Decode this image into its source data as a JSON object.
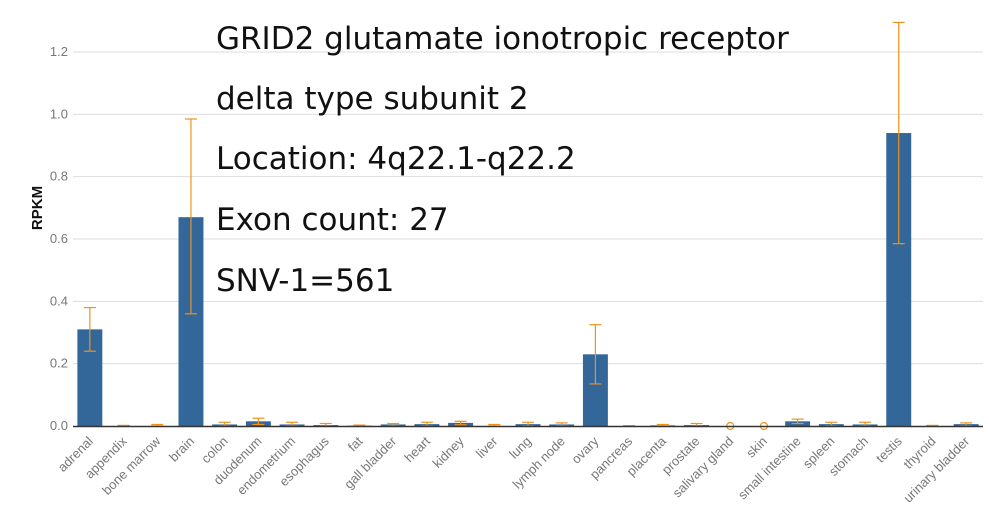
{
  "annotations": {
    "line1": "GRID2 glutamate ionotropic receptor",
    "line2": "delta type subunit 2",
    "line3": "Location: 4q22.1-q22.2",
    "line4": "Exon count: 27",
    "line5": "SNV-1=561"
  },
  "chart_data": {
    "type": "bar",
    "ylabel": "RPKM",
    "ylim": [
      0,
      1.3
    ],
    "yticks": [
      "0.0",
      "0.2",
      "0.4",
      "0.6",
      "0.8",
      "1.0",
      "1.2"
    ],
    "grid": true,
    "categories": [
      "adrenal",
      "appendix",
      "bone marrow",
      "brain",
      "colon",
      "duodenum",
      "endometrium",
      "esophagus",
      "fat",
      "gall bladder",
      "heart",
      "kidney",
      "liver",
      "lung",
      "lymph node",
      "ovary",
      "pancreas",
      "placenta",
      "prostate",
      "salivary gland",
      "skin",
      "small intestine",
      "spleen",
      "stomach",
      "testis",
      "thyroid",
      "urinary bladder"
    ],
    "values": [
      0.31,
      0.0,
      0.0,
      0.67,
      0.005,
      0.015,
      0.005,
      0.003,
      0.001,
      0.005,
      0.006,
      0.01,
      0.0,
      0.006,
      0.005,
      0.23,
      0.0,
      0.002,
      0.003,
      0.0,
      0.0,
      0.015,
      0.006,
      0.005,
      0.94,
      0.0,
      0.006
    ],
    "error_low": [
      0.24,
      0.0,
      0.0,
      0.36,
      0.0,
      0.005,
      0.0,
      0.0,
      0.0,
      0.0,
      0.0,
      0.004,
      0.0,
      0.0,
      0.0,
      0.135,
      0.0,
      0.0,
      0.0,
      0.0,
      0.0,
      0.008,
      0.0,
      0.0,
      0.585,
      0.0,
      0.0
    ],
    "error_high": [
      0.38,
      0.002,
      0.005,
      0.985,
      0.012,
      0.025,
      0.012,
      0.008,
      0.003,
      0.008,
      0.012,
      0.015,
      0.005,
      0.012,
      0.01,
      0.325,
      0.001,
      0.005,
      0.008,
      0.0,
      0.0,
      0.022,
      0.012,
      0.012,
      1.295,
      0.002,
      0.01
    ],
    "colors": {
      "bar": "#336699",
      "error": "#f0921a",
      "grid": "#dddddd",
      "axis": "#333333"
    }
  }
}
